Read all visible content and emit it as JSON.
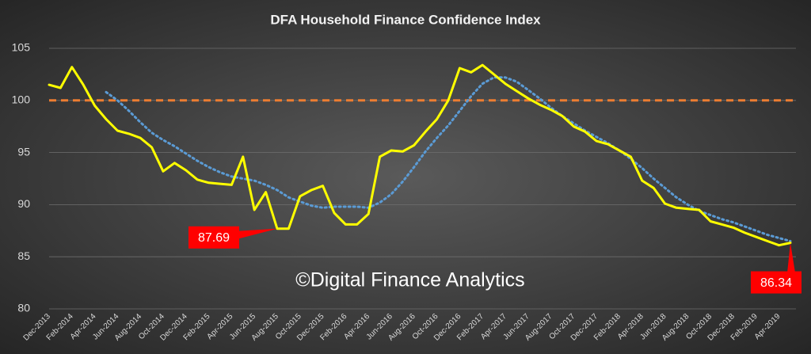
{
  "chart_data": {
    "type": "line",
    "title": "DFA Household Finance Confidence Index",
    "watermark": "©Digital Finance Analytics",
    "categories": [
      "Dec-2013",
      null,
      "Feb-2014",
      null,
      "Apr-2014",
      null,
      "Jun-2014",
      null,
      "Aug-2014",
      null,
      "Oct-2014",
      null,
      "Dec-2014",
      null,
      "Feb-2015",
      null,
      "Apr-2015",
      null,
      "Jun-2015",
      null,
      "Aug-2015",
      null,
      "Oct-2015",
      null,
      "Dec-2015",
      null,
      "Feb-2016",
      null,
      "Apr-2016",
      null,
      "Jun-2016",
      null,
      "Aug-2016",
      null,
      "Oct-2016",
      null,
      "Dec-2016",
      null,
      "Feb-2017",
      null,
      "Apr-2017",
      null,
      "Jun-2017",
      null,
      "Aug-2017",
      null,
      "Oct-2017",
      null,
      "Dec-2017",
      null,
      "Feb-2018",
      null,
      "Apr-2018",
      null,
      "Jun-2018",
      null,
      "Aug-2018",
      null,
      "Oct-2018",
      null,
      "Dec-2018",
      null,
      "Feb-2019",
      null,
      "Apr-2019",
      null
    ],
    "series": [
      {
        "color": "#ffff00",
        "style": "solid",
        "values": [
          101.5,
          101.2,
          103.2,
          101.5,
          99.5,
          98.2,
          97.1,
          96.8,
          96.4,
          95.5,
          93.2,
          94.0,
          93.3,
          92.4,
          92.1,
          92.0,
          91.9,
          94.6,
          89.5,
          91.2,
          87.69,
          87.7,
          90.8,
          91.4,
          91.8,
          89.2,
          88.1,
          88.1,
          89.1,
          94.6,
          95.2,
          95.1,
          95.7,
          97.0,
          98.2,
          100.0,
          103.1,
          102.7,
          103.4,
          102.5,
          101.6,
          100.9,
          100.2,
          99.6,
          99.1,
          98.5,
          97.5,
          97.0,
          96.1,
          95.8,
          95.2,
          94.6,
          92.3,
          91.6,
          90.1,
          89.7,
          89.6,
          89.5,
          88.4,
          88.1,
          87.8,
          87.3,
          86.9,
          86.5,
          86.1,
          86.34
        ],
        "value_labels": [
          null,
          null,
          null,
          null,
          null,
          null,
          null,
          null,
          null,
          null,
          null,
          null,
          null,
          null,
          null,
          null,
          null,
          null,
          null,
          null,
          "87.69",
          null,
          null,
          null,
          null,
          null,
          null,
          null,
          null,
          null,
          null,
          null,
          null,
          null,
          null,
          null,
          null,
          null,
          null,
          null,
          null,
          null,
          null,
          null,
          null,
          null,
          null,
          null,
          null,
          null,
          null,
          null,
          null,
          null,
          null,
          null,
          null,
          null,
          null,
          null,
          null,
          null,
          null,
          null,
          null,
          "86.34"
        ]
      },
      {
        "color": "#5b9bd5",
        "style": "dotted",
        "values": [
          null,
          null,
          null,
          null,
          null,
          100.8,
          100.0,
          99.0,
          97.9,
          96.9,
          96.2,
          95.6,
          94.9,
          94.2,
          93.6,
          93.1,
          92.7,
          92.5,
          92.3,
          91.9,
          91.4,
          90.7,
          90.3,
          89.9,
          89.7,
          89.8,
          89.8,
          89.8,
          89.7,
          90.2,
          91.0,
          92.2,
          93.6,
          95.1,
          96.4,
          97.6,
          99.0,
          100.4,
          101.6,
          102.2,
          102.2,
          101.8,
          101.0,
          100.2,
          99.3,
          98.5,
          97.8,
          97.1,
          96.5,
          95.9,
          95.2,
          94.4,
          93.5,
          92.5,
          91.6,
          90.7,
          90.0,
          89.4,
          89.0,
          88.6,
          88.3,
          87.9,
          87.5,
          87.1,
          86.8,
          86.5
        ]
      }
    ],
    "reference_line": {
      "value": 100,
      "color": "#ed7d31",
      "style": "dashed"
    },
    "label_color": "#ff0000",
    "ylim": [
      80,
      105
    ],
    "yticks": [
      80,
      85,
      90,
      95,
      100,
      105
    ],
    "grid": true
  }
}
